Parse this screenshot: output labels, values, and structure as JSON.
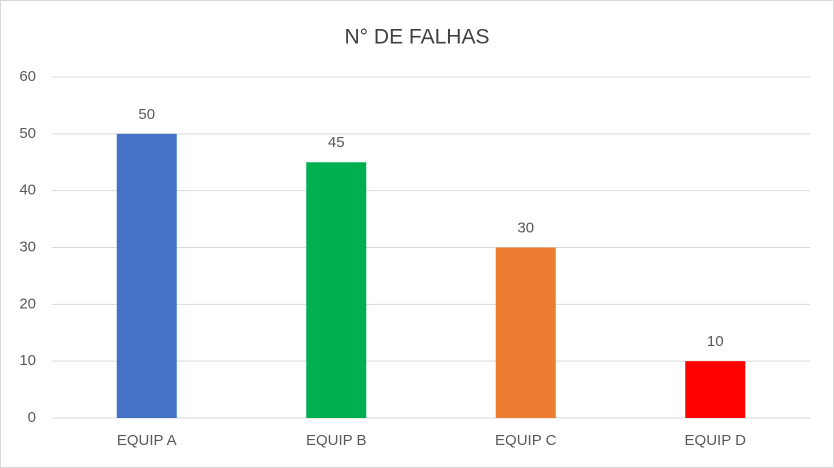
{
  "chart_data": {
    "type": "bar",
    "title": "N° DE FALHAS",
    "categories": [
      "EQUIP A",
      "EQUIP B",
      "EQUIP C",
      "EQUIP D"
    ],
    "values": [
      50,
      45,
      30,
      10
    ],
    "colors": [
      "#4472c4",
      "#00b050",
      "#ed7d31",
      "#ff0000"
    ],
    "ylim": [
      0,
      60
    ],
    "yticks": [
      0,
      10,
      20,
      30,
      40,
      50,
      60
    ],
    "grid": true,
    "data_labels": true
  }
}
